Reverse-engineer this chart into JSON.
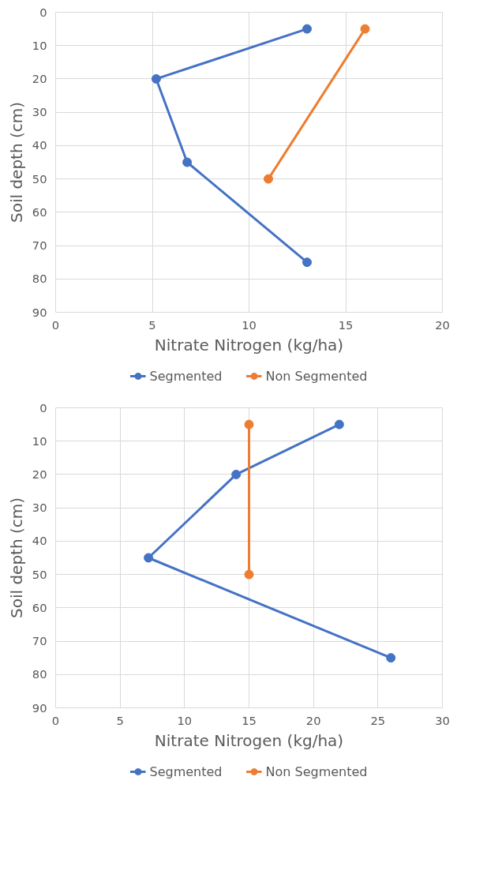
{
  "chart_data": [
    {
      "type": "line",
      "xlabel": "Nitrate Nitrogen (kg/ha)",
      "ylabel": "Soil depth (cm)",
      "xlim": [
        0,
        20
      ],
      "xticks": [
        0,
        5,
        10,
        15,
        20
      ],
      "ylim": [
        90,
        0
      ],
      "yticks": [
        0,
        10,
        20,
        30,
        40,
        50,
        60,
        70,
        80,
        90
      ],
      "grid": true,
      "legend": "bottom",
      "marker": "circle",
      "series": [
        {
          "name": "Segmented",
          "color": "#4472c4",
          "x": [
            13,
            5.2,
            6.8,
            13
          ],
          "values": [
            5,
            20,
            45,
            75
          ]
        },
        {
          "name": "Non Segmented",
          "color": "#ed7d31",
          "x": [
            16,
            11
          ],
          "values": [
            5,
            50
          ]
        }
      ]
    },
    {
      "type": "line",
      "xlabel": "Nitrate Nitrogen (kg/ha)",
      "ylabel": "Soil depth (cm)",
      "xlim": [
        0,
        30
      ],
      "xticks": [
        0,
        5,
        10,
        15,
        20,
        25,
        30
      ],
      "ylim": [
        90,
        0
      ],
      "yticks": [
        0,
        10,
        20,
        30,
        40,
        50,
        60,
        70,
        80,
        90
      ],
      "grid": true,
      "legend": "bottom",
      "marker": "circle",
      "series": [
        {
          "name": "Segmented",
          "color": "#4472c4",
          "x": [
            22,
            14,
            7.2,
            26
          ],
          "values": [
            5,
            20,
            45,
            75
          ]
        },
        {
          "name": "Non Segmented",
          "color": "#ed7d31",
          "x": [
            15,
            15
          ],
          "values": [
            5,
            50
          ]
        }
      ]
    }
  ]
}
